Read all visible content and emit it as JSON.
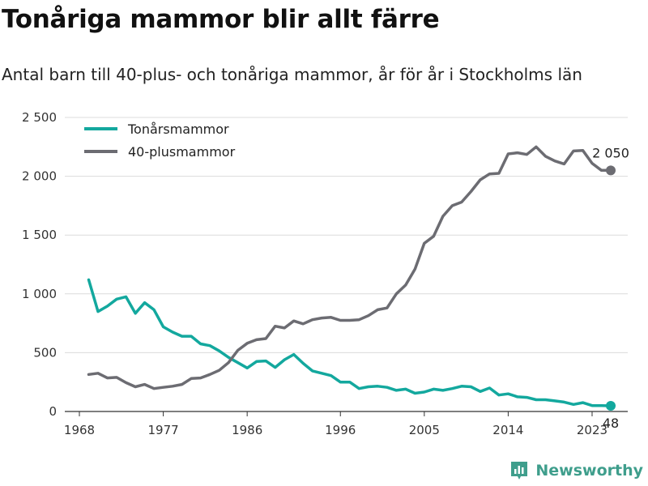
{
  "chart_data": {
    "type": "line",
    "title": "Tonåriga mammor blir allt färre",
    "subtitle": "Antal barn till 40-plus- och tonåriga mammor, år för år i Stockholms län",
    "xlabel": "",
    "ylabel": "",
    "ylim": [
      0,
      2500
    ],
    "xlim": [
      1968,
      2025
    ],
    "y_ticks": [
      0,
      500,
      1000,
      1500,
      2000,
      2500
    ],
    "y_tick_labels": [
      "0",
      "500",
      "1 000",
      "1 500",
      "2 000",
      "2 500"
    ],
    "x_ticks": [
      1968,
      1977,
      1986,
      1996,
      2005,
      2014,
      2023
    ],
    "x_tick_labels": [
      "1968",
      "1977",
      "1986",
      "1996",
      "2005",
      "2014",
      "2023"
    ],
    "grid": true,
    "legend_position": "top-left",
    "x": [
      1969,
      1970,
      1971,
      1972,
      1973,
      1974,
      1975,
      1976,
      1977,
      1978,
      1979,
      1980,
      1981,
      1982,
      1983,
      1984,
      1985,
      1986,
      1987,
      1988,
      1989,
      1990,
      1991,
      1992,
      1993,
      1994,
      1995,
      1996,
      1997,
      1998,
      1999,
      2000,
      2001,
      2002,
      2003,
      2004,
      2005,
      2006,
      2007,
      2008,
      2009,
      2010,
      2011,
      2012,
      2013,
      2014,
      2015,
      2016,
      2017,
      2018,
      2019,
      2020,
      2021,
      2022,
      2023,
      2024,
      2025
    ],
    "series": [
      {
        "name": "Tonårsmammor",
        "color": "#13a89e",
        "values": [
          1120,
          850,
          895,
          955,
          975,
          835,
          925,
          865,
          720,
          675,
          640,
          640,
          575,
          560,
          515,
          460,
          415,
          370,
          425,
          430,
          375,
          440,
          485,
          410,
          345,
          325,
          305,
          250,
          250,
          195,
          210,
          215,
          205,
          180,
          190,
          155,
          165,
          190,
          180,
          195,
          215,
          210,
          170,
          200,
          140,
          150,
          125,
          120,
          100,
          100,
          90,
          80,
          60,
          75,
          50,
          50,
          48
        ],
        "end_label": "48"
      },
      {
        "name": "40-plusmammor",
        "color": "#6c6c72",
        "values": [
          315,
          325,
          285,
          290,
          245,
          210,
          230,
          195,
          205,
          215,
          230,
          280,
          285,
          315,
          350,
          415,
          520,
          580,
          610,
          620,
          725,
          710,
          770,
          745,
          780,
          795,
          800,
          775,
          775,
          780,
          815,
          865,
          880,
          1000,
          1075,
          1210,
          1430,
          1490,
          1660,
          1750,
          1780,
          1870,
          1970,
          2020,
          2025,
          2190,
          2200,
          2185,
          2250,
          2170,
          2130,
          2105,
          2215,
          2220,
          2110,
          2050,
          2050
        ],
        "end_label": "2 050"
      }
    ]
  },
  "brand": {
    "name": "Newsworthy",
    "color": "#3f9e8c",
    "icon": "bar-chart-logo-icon"
  }
}
